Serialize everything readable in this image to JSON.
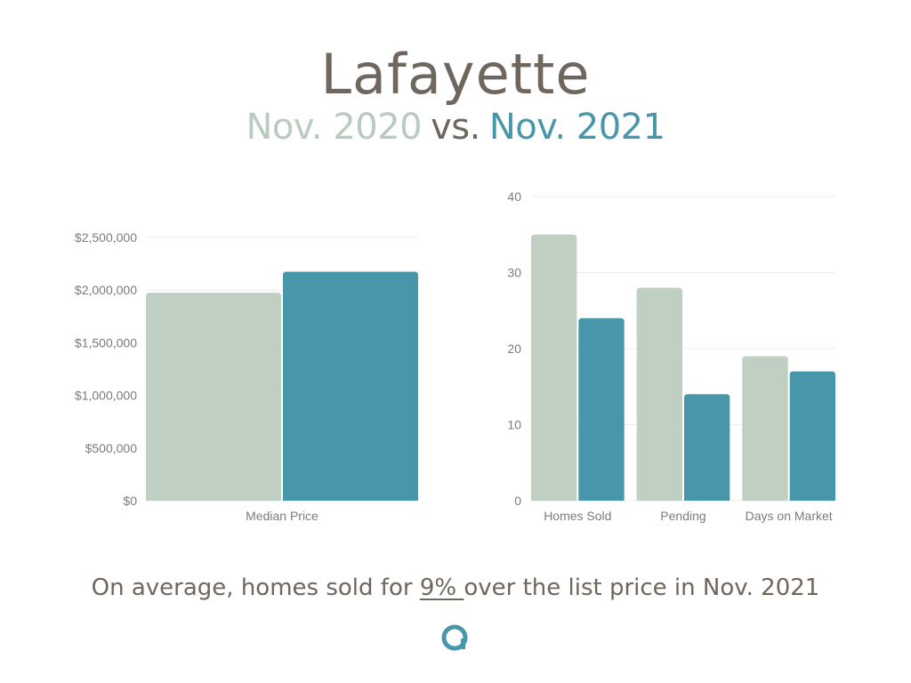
{
  "header": {
    "title": "Lafayette",
    "subtitle_a": "Nov. 2020",
    "subtitle_vs": "vs.",
    "subtitle_b": "Nov. 2021"
  },
  "colors": {
    "series_2020": "#bfd0c3",
    "series_2021": "#4896a9",
    "title": "#6f665d",
    "vs": "#6f665d",
    "subtitle_a": "#b9cbbf",
    "subtitle_b": "#4896a9",
    "grid": "#ececec",
    "logo": "#4896a9"
  },
  "chart_data": [
    {
      "type": "bar",
      "categories": [
        "Median Price"
      ],
      "series": [
        {
          "values": [
            1975000
          ]
        },
        {
          "values": [
            2175000
          ]
        }
      ],
      "yticks": [
        "$0",
        "$500,000",
        "$1,000,000",
        "$1,500,000",
        "$2,000,000",
        "$2,500,000"
      ],
      "ylim": [
        0,
        2500000
      ],
      "grid": true
    },
    {
      "type": "bar",
      "categories": [
        "Homes Sold",
        "Pending",
        "Days on Market"
      ],
      "series": [
        {
          "values": [
            35,
            28,
            19
          ]
        },
        {
          "values": [
            24,
            14,
            17
          ]
        }
      ],
      "yticks": [
        "0",
        "10",
        "20",
        "30",
        "40"
      ],
      "ylim": [
        0,
        40
      ],
      "grid": true
    }
  ],
  "footnote": {
    "prefix": "On average, homes sold for ",
    "highlight": "9% ",
    "suffix": "over the list price in Nov. 2021"
  },
  "logo": {
    "icon": "brand-a-logo-icon"
  }
}
